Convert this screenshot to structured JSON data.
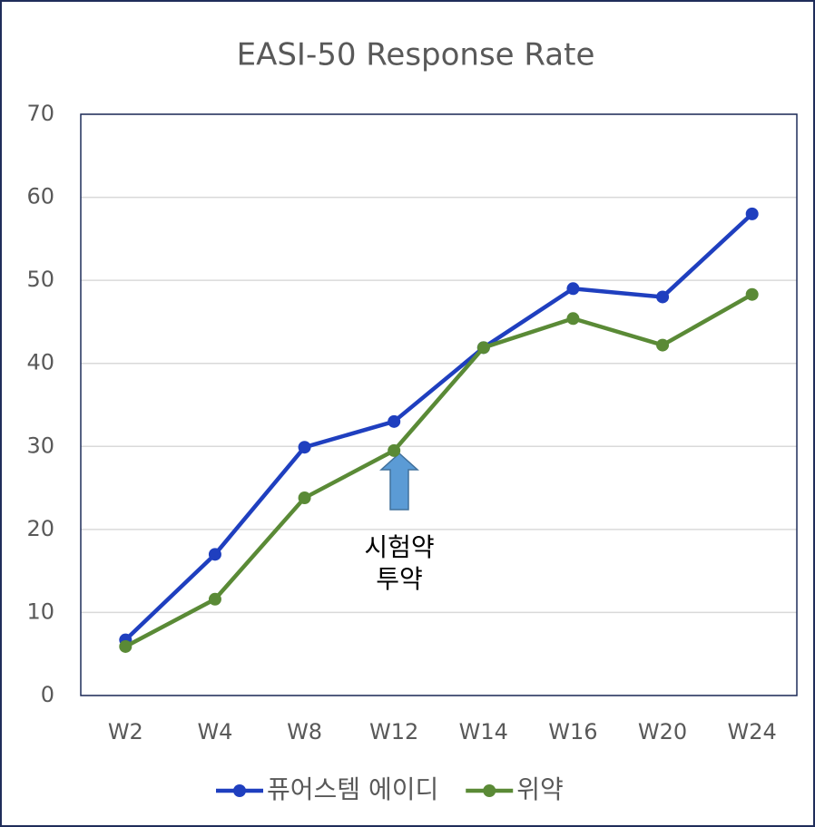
{
  "chart_data": {
    "type": "line",
    "title": "EASI-50 Response Rate",
    "categories": [
      "W2",
      "W4",
      "W8",
      "W12",
      "W14",
      "W16",
      "W20",
      "W24"
    ],
    "series": [
      {
        "name": "퓨어스템 에이디",
        "color": "#1f3fbf",
        "values": [
          6.7,
          17.0,
          29.9,
          33.0,
          41.9,
          49.0,
          48.0,
          58.0
        ]
      },
      {
        "name": "위약",
        "color": "#5a8a36",
        "values": [
          5.9,
          11.6,
          23.8,
          29.5,
          41.9,
          45.4,
          42.2,
          48.3
        ]
      }
    ],
    "ylim": [
      0,
      70
    ],
    "yticks": [
      0,
      10,
      20,
      30,
      40,
      50,
      60,
      70
    ],
    "grid": true,
    "legend": "bottom",
    "annotation": [
      "시험약",
      "투약"
    ]
  }
}
